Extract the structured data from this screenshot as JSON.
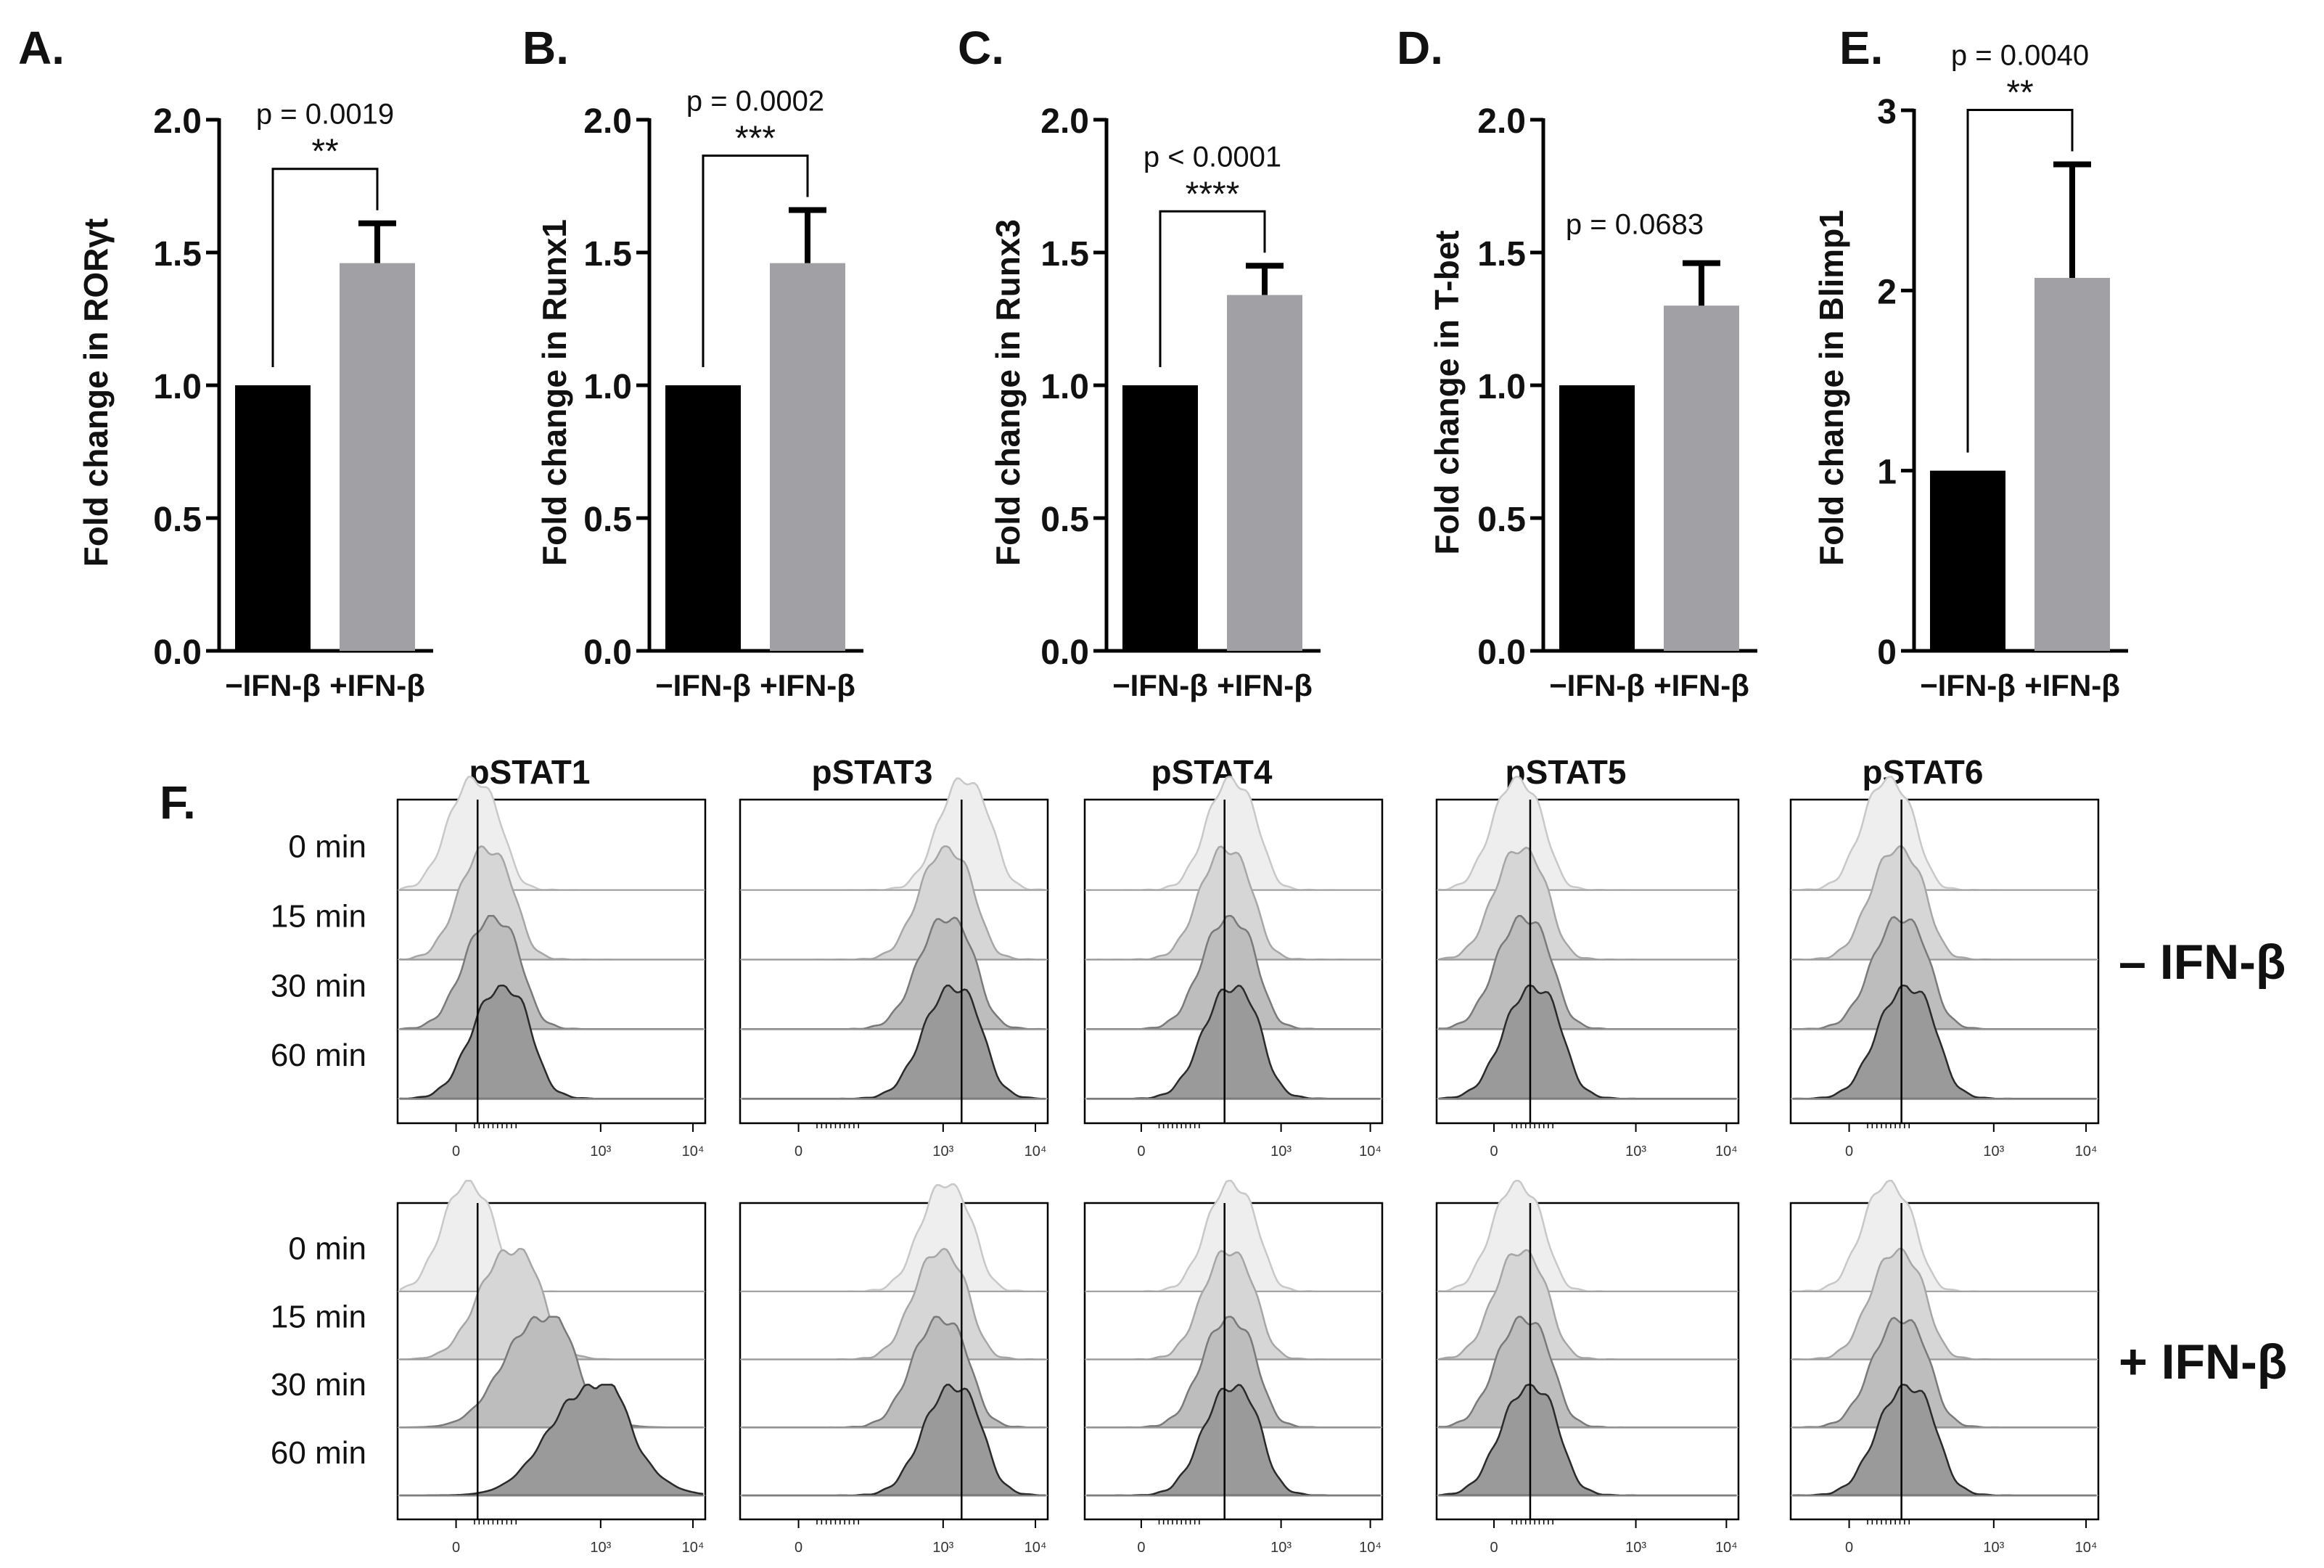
{
  "figure": {
    "bar_panels": [
      {
        "letter": "A.",
        "ylabel": "Fold change in RORγt",
        "p_text": "p = 0.0019",
        "stars": "**"
      },
      {
        "letter": "B.",
        "ylabel": "Fold change in Runx1",
        "p_text": "p = 0.0002",
        "stars": "***"
      },
      {
        "letter": "C.",
        "ylabel": "Fold change in Runx3",
        "p_text": "p < 0.0001",
        "stars": "****"
      },
      {
        "letter": "D.",
        "ylabel": "Fold change in T-bet",
        "p_text": "p = 0.0683",
        "stars": ""
      },
      {
        "letter": "E.",
        "ylabel": "Fold change in Blimp1",
        "p_text": "p = 0.0040",
        "stars": "**"
      }
    ],
    "histogram_panel": {
      "letter": "F.",
      "columns": [
        "pSTAT1",
        "pSTAT3",
        "pSTAT4",
        "pSTAT5",
        "pSTAT6"
      ],
      "time_labels": [
        "0 min",
        "15 min",
        "30 min",
        "60 min"
      ],
      "conditions": [
        "– IFN-β",
        "+ IFN-β"
      ],
      "x_tick_labels": [
        "0",
        "10³",
        "10⁴"
      ]
    }
  },
  "chart_data": [
    {
      "type": "bar",
      "title": "",
      "categories": [
        "−IFN-β",
        "+IFN-β"
      ],
      "values": [
        1.0,
        1.46
      ],
      "errors": [
        0,
        0.15
      ],
      "ylabel": "Fold change in RORγt",
      "ylim": [
        0,
        2.0
      ],
      "yticks": [
        "0.0",
        "0.5",
        "1.0",
        "1.5",
        "2.0"
      ],
      "colors": [
        "#000000",
        "#a0a0a5"
      ],
      "significance": {
        "p": "p = 0.0019",
        "stars": "**"
      }
    },
    {
      "type": "bar",
      "title": "",
      "categories": [
        "−IFN-β",
        "+IFN-β"
      ],
      "values": [
        1.0,
        1.46
      ],
      "errors": [
        0,
        0.2
      ],
      "ylabel": "Fold change in Runx1",
      "ylim": [
        0,
        2.0
      ],
      "yticks": [
        "0.0",
        "0.5",
        "1.0",
        "1.5",
        "2.0"
      ],
      "colors": [
        "#000000",
        "#a0a0a5"
      ],
      "significance": {
        "p": "p = 0.0002",
        "stars": "***"
      }
    },
    {
      "type": "bar",
      "title": "",
      "categories": [
        "−IFN-β",
        "+IFN-β"
      ],
      "values": [
        1.0,
        1.34
      ],
      "errors": [
        0,
        0.11
      ],
      "ylabel": "Fold change in Runx3",
      "ylim": [
        0,
        2.0
      ],
      "yticks": [
        "0.0",
        "0.5",
        "1.0",
        "1.5",
        "2.0"
      ],
      "colors": [
        "#000000",
        "#a0a0a5"
      ],
      "significance": {
        "p": "p < 0.0001",
        "stars": "****"
      }
    },
    {
      "type": "bar",
      "title": "",
      "categories": [
        "−IFN-β",
        "+IFN-β"
      ],
      "values": [
        1.0,
        1.3
      ],
      "errors": [
        0,
        0.16
      ],
      "ylabel": "Fold change in T-bet",
      "ylim": [
        0,
        2.0
      ],
      "yticks": [
        "0.0",
        "0.5",
        "1.0",
        "1.5",
        "2.0"
      ],
      "colors": [
        "#000000",
        "#a0a0a5"
      ],
      "significance": {
        "p": "p = 0.0683",
        "stars": ""
      }
    },
    {
      "type": "bar",
      "title": "",
      "categories": [
        "−IFN-β",
        "+IFN-β"
      ],
      "values": [
        1.0,
        2.07
      ],
      "errors": [
        0,
        0.63
      ],
      "ylabel": "Fold change in Blimp1",
      "ylim": [
        0,
        3
      ],
      "yticks": [
        "0",
        "1",
        "2",
        "3"
      ],
      "colors": [
        "#000000",
        "#a0a0a5"
      ],
      "significance": {
        "p": "p = 0.0040",
        "stars": "**"
      }
    }
  ]
}
